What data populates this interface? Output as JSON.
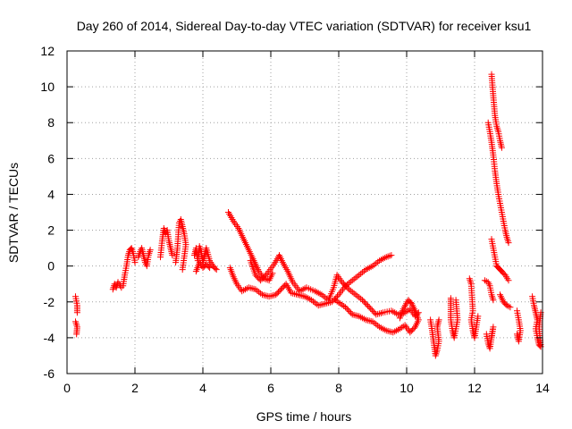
{
  "chart_data": {
    "type": "scatter",
    "title": "Day 260 of 2014, Sidereal Day-to-day VTEC variation (SDTVAR) for receiver ksu1",
    "xlabel": "GPS time / hours",
    "ylabel": "SDTVAR / TECUs",
    "xlim": [
      0,
      14
    ],
    "ylim": [
      -6,
      12
    ],
    "xticks": [
      0,
      2,
      4,
      6,
      8,
      10,
      12,
      14
    ],
    "yticks": [
      -6,
      -4,
      -2,
      0,
      2,
      4,
      6,
      8,
      10,
      12
    ],
    "grid": true,
    "marker": "+",
    "color": "#ff0000",
    "series": [
      {
        "name": "SDTVAR",
        "tracks": [
          [
            [
              0.25,
              -1.7
            ],
            [
              0.3,
              -2.2
            ],
            [
              0.3,
              -2.6
            ]
          ],
          [
            [
              0.25,
              -3.1
            ],
            [
              0.3,
              -3.4
            ],
            [
              0.28,
              -3.8
            ]
          ],
          [
            [
              1.35,
              -1.3
            ],
            [
              1.4,
              -1.0
            ],
            [
              1.45,
              -1.2
            ],
            [
              1.5,
              -0.9
            ],
            [
              1.6,
              -1.2
            ]
          ],
          [
            [
              1.65,
              -1.1
            ],
            [
              1.7,
              -0.5
            ],
            [
              1.75,
              0.0
            ],
            [
              1.8,
              0.6
            ],
            [
              1.85,
              0.9
            ],
            [
              1.9,
              1.0
            ],
            [
              1.95,
              0.7
            ],
            [
              2.0,
              0.2
            ]
          ],
          [
            [
              2.1,
              0.5
            ],
            [
              2.15,
              0.8
            ],
            [
              2.2,
              1.0
            ],
            [
              2.25,
              0.6
            ],
            [
              2.3,
              0.2
            ],
            [
              2.35,
              0.0
            ],
            [
              2.4,
              0.6
            ],
            [
              2.45,
              0.9
            ]
          ],
          [
            [
              2.75,
              0.5
            ],
            [
              2.8,
              1.4
            ],
            [
              2.85,
              2.1
            ],
            [
              2.9,
              1.8
            ],
            [
              2.95,
              2.0
            ],
            [
              3.0,
              1.4
            ],
            [
              3.05,
              1.0
            ],
            [
              3.1,
              0.6
            ]
          ],
          [
            [
              3.2,
              0.2
            ],
            [
              3.25,
              1.0
            ],
            [
              3.3,
              2.4
            ],
            [
              3.35,
              2.6
            ],
            [
              3.4,
              2.2
            ],
            [
              3.45,
              1.8
            ],
            [
              3.5,
              1.2
            ],
            [
              3.4,
              -0.2
            ]
          ],
          [
            [
              3.75,
              0.6
            ],
            [
              3.8,
              1.0
            ],
            [
              3.85,
              0.3
            ],
            [
              3.9,
              1.1
            ],
            [
              3.95,
              0.8
            ],
            [
              4.0,
              0.2
            ],
            [
              4.05,
              0.6
            ],
            [
              4.1,
              1.0
            ],
            [
              4.2,
              0.3
            ],
            [
              4.3,
              0.0
            ],
            [
              4.4,
              -0.2
            ]
          ],
          [
            [
              3.8,
              -0.3
            ],
            [
              3.9,
              0.2
            ],
            [
              4.0,
              -0.1
            ],
            [
              4.1,
              0.1
            ],
            [
              4.2,
              -0.1
            ]
          ],
          [
            [
              4.75,
              3.0
            ],
            [
              4.9,
              2.5
            ],
            [
              5.05,
              2.1
            ],
            [
              5.2,
              1.5
            ],
            [
              5.35,
              0.9
            ],
            [
              5.5,
              0.3
            ],
            [
              5.65,
              -0.3
            ],
            [
              5.8,
              -0.7
            ],
            [
              5.95,
              -0.8
            ],
            [
              6.05,
              -0.4
            ]
          ],
          [
            [
              4.8,
              -0.1
            ],
            [
              4.9,
              -0.6
            ],
            [
              5.0,
              -1.0
            ],
            [
              5.15,
              -1.4
            ],
            [
              5.35,
              -1.2
            ],
            [
              5.55,
              -1.3
            ],
            [
              5.75,
              -1.6
            ],
            [
              5.95,
              -1.7
            ],
            [
              6.15,
              -1.6
            ],
            [
              6.3,
              -1.3
            ],
            [
              6.45,
              -1.0
            ],
            [
              6.6,
              -1.5
            ],
            [
              6.8,
              -1.6
            ],
            [
              7.0,
              -1.7
            ],
            [
              7.2,
              -1.9
            ],
            [
              7.4,
              -2.2
            ],
            [
              7.6,
              -2.1
            ],
            [
              7.8,
              -2.0
            ],
            [
              8.0,
              -1.6
            ],
            [
              8.2,
              -1.1
            ],
            [
              8.4,
              -0.8
            ],
            [
              8.6,
              -0.5
            ],
            [
              8.8,
              -0.2
            ],
            [
              9.0,
              0.0
            ],
            [
              9.2,
              0.3
            ],
            [
              9.4,
              0.5
            ],
            [
              9.55,
              0.6
            ]
          ],
          [
            [
              5.4,
              0.3
            ],
            [
              5.55,
              -0.5
            ],
            [
              5.7,
              -0.8
            ],
            [
              5.9,
              -0.4
            ],
            [
              6.1,
              0.1
            ],
            [
              6.25,
              0.6
            ],
            [
              6.35,
              0.2
            ],
            [
              6.5,
              -0.3
            ],
            [
              6.65,
              -0.9
            ],
            [
              6.85,
              -1.4
            ],
            [
              7.05,
              -1.2
            ],
            [
              7.3,
              -1.4
            ],
            [
              7.5,
              -1.6
            ],
            [
              7.7,
              -1.9
            ],
            [
              7.85,
              -1.2
            ],
            [
              7.95,
              -0.5
            ],
            [
              8.1,
              -0.9
            ],
            [
              8.3,
              -1.3
            ],
            [
              8.5,
              -1.6
            ],
            [
              8.7,
              -1.9
            ],
            [
              8.9,
              -2.3
            ],
            [
              9.1,
              -2.7
            ],
            [
              9.3,
              -2.6
            ],
            [
              9.55,
              -2.5
            ],
            [
              9.75,
              -2.7
            ],
            [
              9.95,
              -2.6
            ],
            [
              10.1,
              -2.4
            ],
            [
              10.25,
              -2.8
            ],
            [
              10.35,
              -2.6
            ]
          ],
          [
            [
              7.9,
              -1.9
            ],
            [
              8.05,
              -2.1
            ],
            [
              8.2,
              -2.3
            ],
            [
              8.4,
              -2.7
            ],
            [
              8.6,
              -2.8
            ],
            [
              8.8,
              -3.0
            ],
            [
              9.0,
              -3.1
            ],
            [
              9.2,
              -3.4
            ],
            [
              9.4,
              -3.6
            ],
            [
              9.6,
              -3.7
            ],
            [
              9.8,
              -3.5
            ],
            [
              9.95,
              -3.3
            ],
            [
              10.1,
              -3.7
            ],
            [
              10.25,
              -3.4
            ],
            [
              10.35,
              -3.0
            ],
            [
              10.25,
              -2.5
            ],
            [
              10.15,
              -2.1
            ],
            [
              10.05,
              -1.9
            ],
            [
              9.9,
              -2.4
            ],
            [
              9.8,
              -2.9
            ]
          ],
          [
            [
              10.7,
              -3.0
            ],
            [
              10.75,
              -3.6
            ],
            [
              10.8,
              -4.3
            ],
            [
              10.85,
              -5.0
            ],
            [
              10.9,
              -4.7
            ],
            [
              10.95,
              -4.2
            ],
            [
              10.9,
              -3.4
            ],
            [
              10.95,
              -3.0
            ]
          ],
          [
            [
              11.3,
              -1.8
            ],
            [
              11.3,
              -2.2
            ],
            [
              11.3,
              -3.0
            ],
            [
              11.35,
              -3.6
            ],
            [
              11.4,
              -4.0
            ],
            [
              11.45,
              -3.5
            ],
            [
              11.5,
              -3.0
            ],
            [
              11.45,
              -1.9
            ]
          ],
          [
            [
              11.85,
              -0.7
            ],
            [
              11.9,
              -1.0
            ],
            [
              11.95,
              -2.5
            ],
            [
              11.9,
              -3.0
            ],
            [
              11.95,
              -3.6
            ],
            [
              12.0,
              -4.0
            ],
            [
              12.05,
              -3.4
            ],
            [
              12.1,
              -2.8
            ]
          ],
          [
            [
              12.3,
              -0.8
            ],
            [
              12.4,
              -0.9
            ],
            [
              12.45,
              -1.1
            ],
            [
              12.5,
              -1.6
            ],
            [
              12.55,
              -1.9
            ]
          ],
          [
            [
              12.35,
              -3.8
            ],
            [
              12.4,
              -4.3
            ],
            [
              12.45,
              -4.6
            ],
            [
              12.5,
              -4.0
            ],
            [
              12.55,
              -3.4
            ],
            [
              12.5,
              -3.9
            ]
          ],
          [
            [
              12.5,
              10.7
            ],
            [
              12.55,
              9.5
            ],
            [
              12.6,
              8.4
            ],
            [
              12.65,
              7.8
            ],
            [
              12.7,
              7.5
            ],
            [
              12.75,
              7.0
            ],
            [
              12.8,
              6.6
            ]
          ],
          [
            [
              12.4,
              8.0
            ],
            [
              12.45,
              7.5
            ],
            [
              12.5,
              6.9
            ],
            [
              12.55,
              6.2
            ],
            [
              12.6,
              5.3
            ],
            [
              12.65,
              4.6
            ],
            [
              12.7,
              4.0
            ],
            [
              12.75,
              3.5
            ],
            [
              12.8,
              3.0
            ],
            [
              12.85,
              2.5
            ],
            [
              12.9,
              2.0
            ],
            [
              12.95,
              1.6
            ],
            [
              13.0,
              1.3
            ]
          ],
          [
            [
              12.5,
              1.5
            ],
            [
              12.55,
              1.0
            ],
            [
              12.6,
              0.5
            ],
            [
              12.65,
              0.0
            ],
            [
              12.7,
              -0.1
            ],
            [
              12.75,
              -0.2
            ],
            [
              12.8,
              -0.3
            ],
            [
              12.9,
              -0.5
            ],
            [
              13.0,
              -0.8
            ]
          ],
          [
            [
              12.75,
              -1.6
            ],
            [
              12.85,
              -2.0
            ],
            [
              12.95,
              -2.2
            ],
            [
              13.05,
              -2.3
            ]
          ],
          [
            [
              13.25,
              -2.5
            ],
            [
              13.3,
              -3.0
            ],
            [
              13.35,
              -3.6
            ],
            [
              13.3,
              -4.2
            ],
            [
              13.25,
              -3.8
            ]
          ],
          [
            [
              13.7,
              -1.7
            ],
            [
              13.75,
              -2.2
            ],
            [
              13.8,
              -2.6
            ],
            [
              13.85,
              -3.0
            ],
            [
              13.8,
              -3.5
            ],
            [
              13.85,
              -4.0
            ],
            [
              13.9,
              -4.4
            ],
            [
              13.95,
              -4.5
            ],
            [
              13.9,
              -3.4
            ],
            [
              13.95,
              -2.6
            ]
          ]
        ]
      }
    ]
  }
}
